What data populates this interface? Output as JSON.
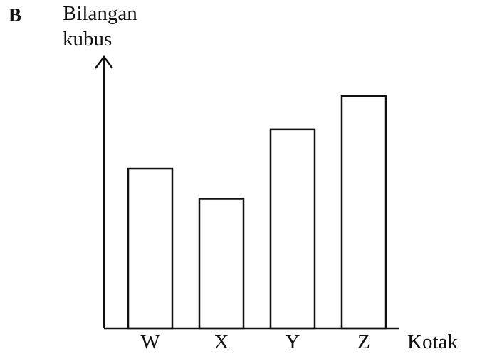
{
  "part_label": "B",
  "chart_data": {
    "type": "bar",
    "ylabel_line1": "Bilangan",
    "ylabel_line2": "kubus",
    "xlabel": "Kotak",
    "categories": [
      "W",
      "X",
      "Y",
      "Z"
    ],
    "values": [
      5.3,
      4.3,
      6.6,
      7.7
    ],
    "ylim": [
      0,
      9
    ],
    "grid": false,
    "y_ticks_shown": false,
    "bar_fill": "#ffffff",
    "line_color": "#111111"
  }
}
